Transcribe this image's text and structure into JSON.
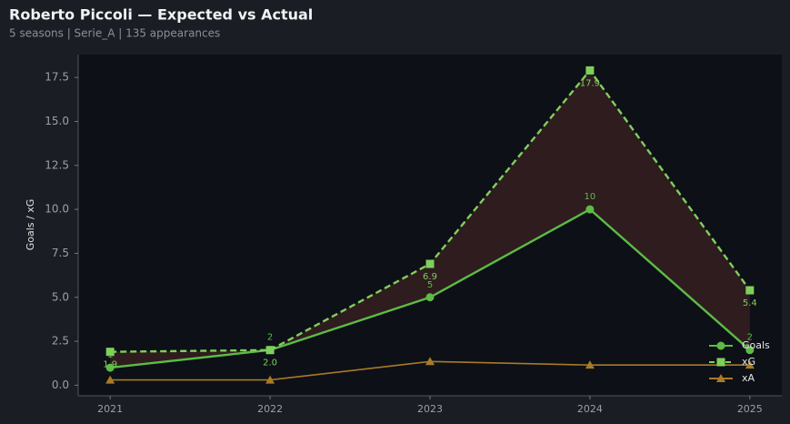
{
  "chart_data": {
    "type": "line",
    "title": "Roberto Piccoli — Expected vs Actual",
    "subtitle": "5 seasons | Serie_A | 135 appearances",
    "y_label": "Goals / xG",
    "x": [
      2021,
      2022,
      2023,
      2024,
      2025
    ],
    "xlim": [
      2020.8,
      2025.2
    ],
    "xticks": [
      2021,
      2022,
      2023,
      2024,
      2025
    ],
    "ylim": [
      -0.6,
      18.8
    ],
    "yticks": [
      {
        "value": 0,
        "label": "0.0"
      },
      {
        "value": 2.5,
        "label": "2.5"
      },
      {
        "value": 5,
        "label": "5.0"
      },
      {
        "value": 7.5,
        "label": "7.5"
      },
      {
        "value": 10,
        "label": "10.0"
      },
      {
        "value": 12.5,
        "label": "12.5"
      },
      {
        "value": 15,
        "label": "15.0"
      },
      {
        "value": 17.5,
        "label": "17.5"
      }
    ],
    "legend": "lower right",
    "series": [
      {
        "name": "Goals",
        "color": "#5dbb46",
        "marker": "circle",
        "dashed": false,
        "labels_above": true,
        "values": [
          1,
          2,
          5,
          10,
          2
        ]
      },
      {
        "name": "xG",
        "color": "#7fcf5c",
        "marker": "square",
        "dashed": true,
        "labels_above": false,
        "values": [
          1.9,
          2.0,
          6.9,
          17.9,
          5.4
        ],
        "value_labels": [
          "1.9",
          "2.0",
          "6.9",
          "17.9",
          "5.4"
        ]
      },
      {
        "name": "xA",
        "color": "#a87a28",
        "marker": "triangle",
        "dashed": false,
        "values": [
          0.3,
          0.3,
          1.35,
          1.15,
          1.15
        ]
      }
    ]
  }
}
